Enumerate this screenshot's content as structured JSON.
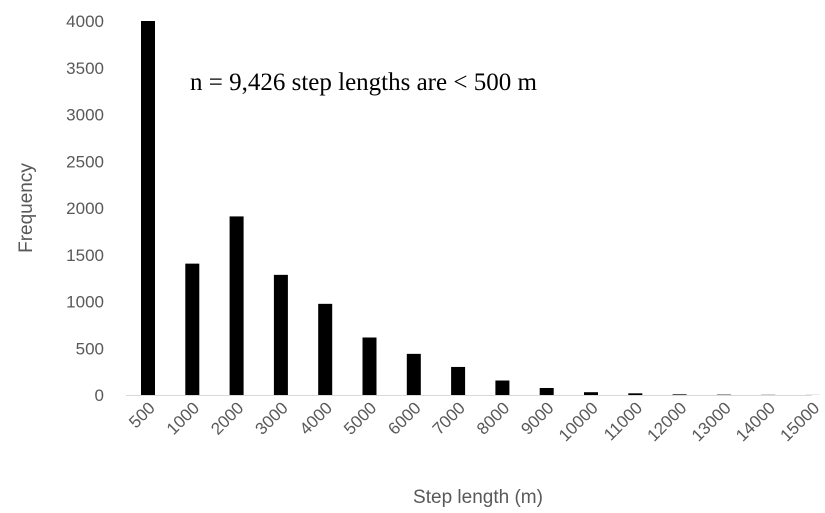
{
  "chart_data": {
    "type": "bar",
    "categories": [
      "500",
      "1000",
      "2000",
      "3000",
      "4000",
      "5000",
      "6000",
      "7000",
      "8000",
      "9000",
      "10000",
      "11000",
      "12000",
      "13000",
      "14000",
      "15000"
    ],
    "values": [
      4000,
      1405,
      1910,
      1285,
      975,
      615,
      440,
      300,
      155,
      75,
      30,
      18,
      7,
      4,
      2,
      1
    ],
    "title": "",
    "xlabel": "Step length (m)",
    "ylabel": "Frequency",
    "ylim": [
      0,
      4000
    ],
    "yticks": [
      "0",
      "500",
      "1000",
      "1500",
      "2000",
      "2500",
      "3000",
      "3500",
      "4000"
    ],
    "annotation": "n = 9,426 step lengths are < 500 m",
    "grid": false,
    "bar_color": "#000000"
  }
}
